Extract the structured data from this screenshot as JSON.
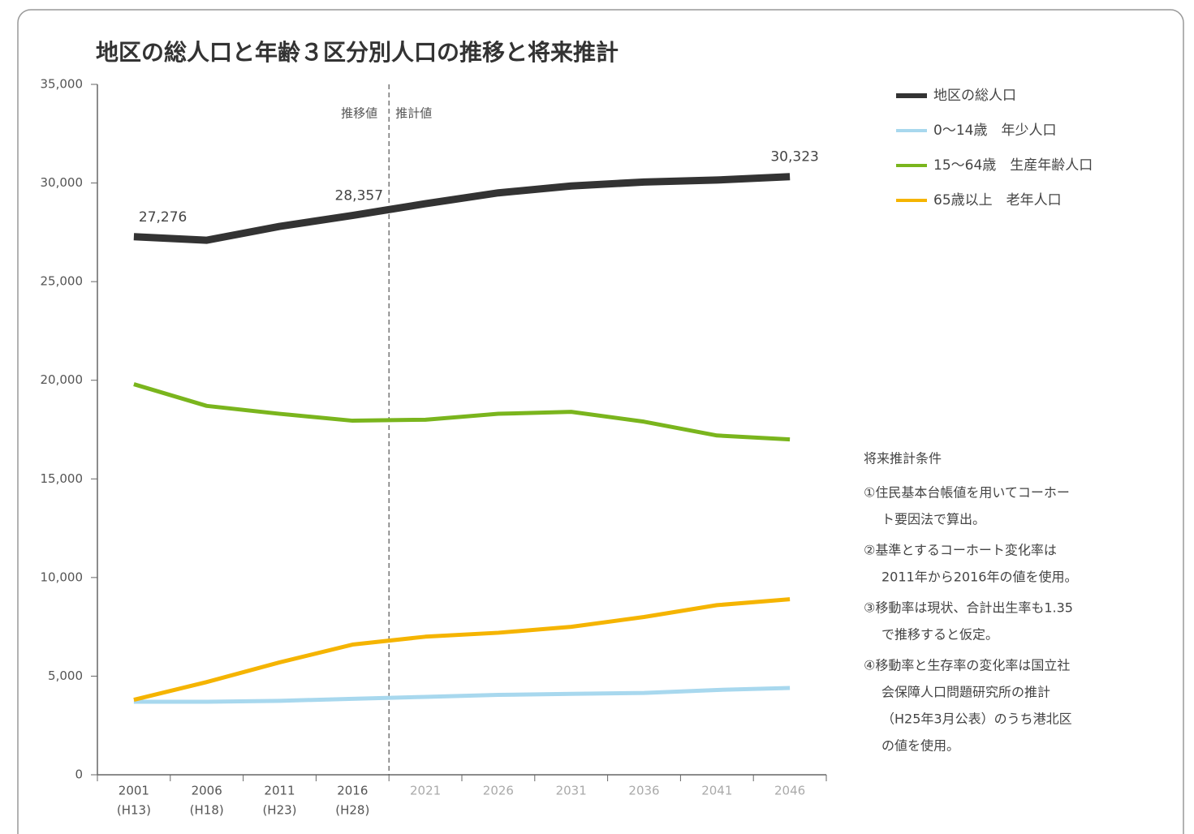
{
  "chart_data": {
    "type": "line",
    "title": "地区の総人口と年齢３区分別人口の推移と将来推計",
    "categories": [
      "2001",
      "2006",
      "2011",
      "2016",
      "2021",
      "2026",
      "2031",
      "2036",
      "2041",
      "2046"
    ],
    "category_sublabels": [
      "(H13)",
      "(H18)",
      "(H23)",
      "(H28)",
      null,
      null,
      null,
      null,
      null,
      null
    ],
    "series": [
      {
        "name": "地区の総人口",
        "color": "#333333",
        "values": [
          27276,
          27100,
          27800,
          28357,
          28950,
          29500,
          29850,
          30050,
          30150,
          30323
        ],
        "value_labels": [
          "27,276",
          null,
          null,
          "28,357",
          null,
          null,
          null,
          null,
          null,
          "30,323"
        ]
      },
      {
        "name": "0～14歳　年少人口",
        "color": "#a8d8ee",
        "values": [
          3700,
          3700,
          3750,
          3850,
          3950,
          4050,
          4100,
          4150,
          4300,
          4400
        ]
      },
      {
        "name": "15～64歳　生産年齢人口",
        "color": "#7ab51d",
        "values": [
          19800,
          18700,
          18300,
          17950,
          18000,
          18300,
          18400,
          17900,
          17200,
          17000
        ]
      },
      {
        "name": "65歳以上　老年人口",
        "color": "#f5b400",
        "values": [
          3800,
          4700,
          5700,
          6600,
          7000,
          7200,
          7500,
          8000,
          8600,
          8900
        ]
      }
    ],
    "ylim": [
      0,
      35000
    ],
    "yticks": [
      0,
      {
        "value": 5000,
        "label": "5,000"
      },
      {
        "value": 10000,
        "label": "10,000"
      },
      {
        "value": 15000,
        "label": "15,000"
      },
      {
        "value": 20000,
        "label": "20,000"
      },
      {
        "value": 25000,
        "label": "25,000"
      },
      {
        "value": 30000,
        "label": "30,000"
      },
      {
        "value": 35000,
        "label": "35,000"
      }
    ],
    "annotations": [
      "推移値",
      "推計値"
    ],
    "notes": {
      "title": "将来推計条件",
      "items": [
        [
          "①住民基本台帳値を用いてコーホー",
          "ト要因法で算出。"
        ],
        [
          "②基準とするコーホート変化率は",
          "2011年から2016年の値を使用。"
        ],
        [
          "③移動率は現状、合計出生率も1.35",
          "で推移すると仮定。"
        ],
        [
          "④移動率と生存率の変化率は国立社",
          "会保障人口問題研究所の推計",
          "（H25年3月公表）のうち港北区",
          "の値を使用。"
        ]
      ]
    }
  }
}
